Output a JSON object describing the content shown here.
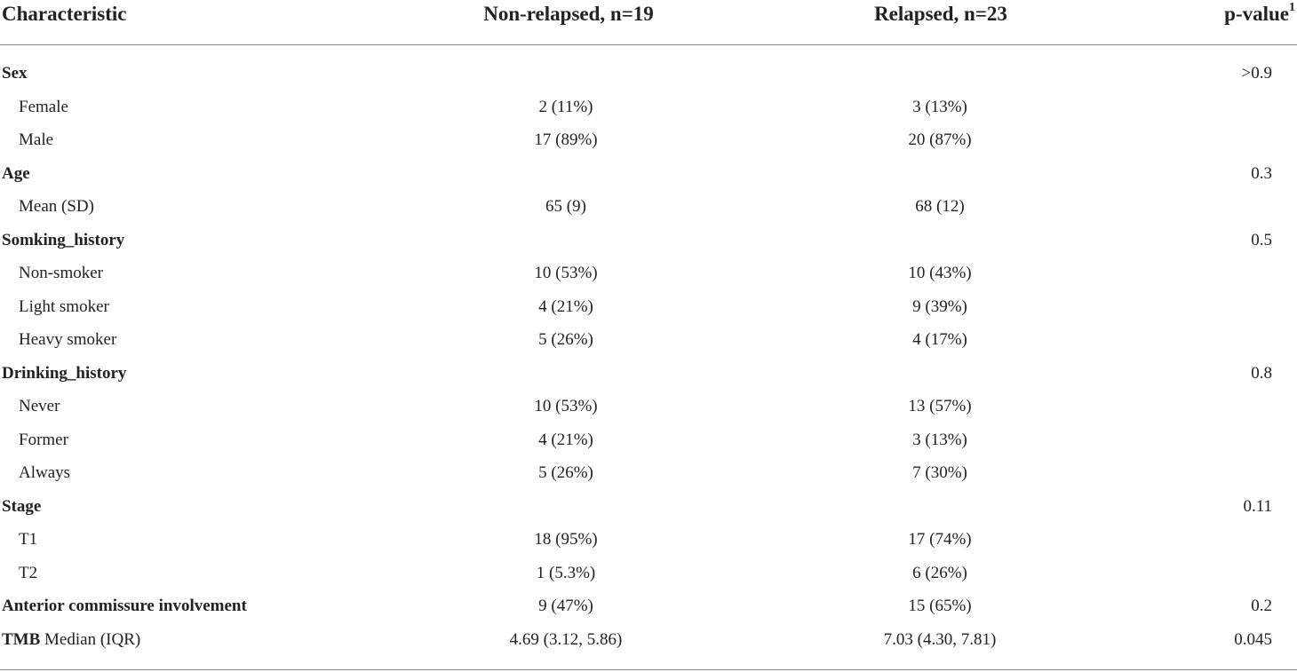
{
  "header": {
    "characteristic": "Characteristic",
    "non_relapsed": "Non-relapsed, n=19",
    "relapsed": "Relapsed, n=23",
    "p_value": "p-value",
    "p_value_footnote": "1"
  },
  "rows": [
    {
      "label": "Sex",
      "non_relapsed": "",
      "relapsed": "",
      "p": ">0.9"
    },
    {
      "label": "Female",
      "non_relapsed": "2 (11%)",
      "relapsed": "3 (13%)",
      "p": ""
    },
    {
      "label": "Male",
      "non_relapsed": "17 (89%)",
      "relapsed": "20 (87%)",
      "p": ""
    },
    {
      "label": "Age",
      "non_relapsed": "",
      "relapsed": "",
      "p": "0.3"
    },
    {
      "label": "Mean (SD)",
      "non_relapsed": "65 (9)",
      "relapsed": "68 (12)",
      "p": ""
    },
    {
      "label": "Somking_history",
      "non_relapsed": "",
      "relapsed": "",
      "p": "0.5"
    },
    {
      "label": "Non-smoker",
      "non_relapsed": "10 (53%)",
      "relapsed": "10 (43%)",
      "p": ""
    },
    {
      "label": "Light smoker",
      "non_relapsed": "4 (21%)",
      "relapsed": "9 (39%)",
      "p": ""
    },
    {
      "label": "Heavy smoker",
      "non_relapsed": "5 (26%)",
      "relapsed": "4 (17%)",
      "p": ""
    },
    {
      "label": "Drinking_history",
      "non_relapsed": "",
      "relapsed": "",
      "p": "0.8"
    },
    {
      "label": "Never",
      "non_relapsed": "10 (53%)",
      "relapsed": "13 (57%)",
      "p": ""
    },
    {
      "label": "Former",
      "non_relapsed": "4 (21%)",
      "relapsed": "3 (13%)",
      "p": ""
    },
    {
      "label": "Always",
      "non_relapsed": "5 (26%)",
      "relapsed": "7 (30%)",
      "p": ""
    },
    {
      "label": "Stage",
      "non_relapsed": "",
      "relapsed": "",
      "p": "0.11"
    },
    {
      "label": "T1",
      "non_relapsed": "18 (95%)",
      "relapsed": "17 (74%)",
      "p": ""
    },
    {
      "label": "T2",
      "non_relapsed": "1 (5.3%)",
      "relapsed": "6 (26%)",
      "p": ""
    },
    {
      "label": "Anterior commissure involvement",
      "non_relapsed": "9 (47%)",
      "relapsed": "15 (65%)",
      "p": "0.2"
    },
    {
      "label_bold": "TMB",
      "label": " Median (IQR)",
      "non_relapsed": "4.69 (3.12, 5.86)",
      "relapsed": "7.03 (4.30, 7.81)",
      "p": "0.045"
    }
  ]
}
